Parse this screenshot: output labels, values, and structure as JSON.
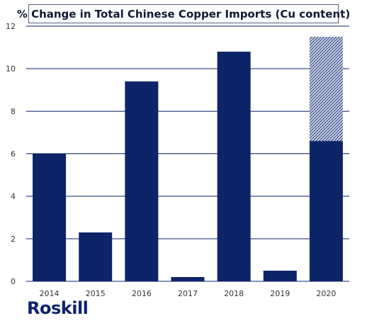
{
  "chart_data": {
    "type": "bar",
    "title": "% Change in Total Chinese Copper Imports (Cu content)",
    "categories": [
      "2014",
      "2015",
      "2016",
      "2017",
      "2018",
      "2019",
      "2020"
    ],
    "series": [
      {
        "values": [
          6.0,
          2.3,
          9.4,
          0.2,
          10.8,
          0.5,
          6.6
        ]
      },
      {
        "values": [
          0,
          0,
          0,
          0,
          0,
          0,
          4.9
        ]
      }
    ],
    "ylim": [
      0,
      12
    ],
    "yticks": [
      0,
      2,
      4,
      6,
      8,
      10,
      12
    ],
    "grid": true,
    "xlabel": "",
    "ylabel": ""
  },
  "colors": {
    "bar": "#0d2468",
    "hatch_bg": "#c7cee0",
    "grid": "#0d2468"
  },
  "brand": {
    "logo_text": "Roskill"
  }
}
